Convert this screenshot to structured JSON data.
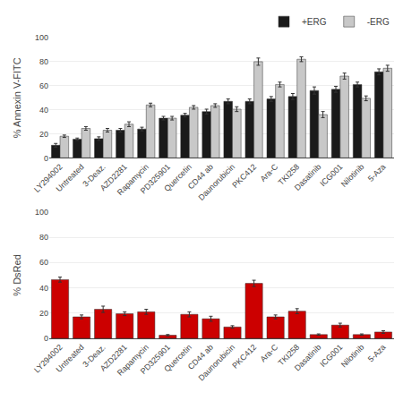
{
  "chart_data": [
    {
      "type": "bar",
      "categories": [
        "LY294002",
        "Untreated",
        "3-Deaz.",
        "AZD2281",
        "Rapamycin",
        "PD325901",
        "Quercetin",
        "CD44 ab",
        "Daunorubicin",
        "PKC412",
        "Ara-C",
        "TKI258",
        "Dasatinib",
        "ICG001",
        "Nilotinib",
        "5-Aza"
      ],
      "series": [
        {
          "name": "+ERG",
          "color": "#1a1a1a",
          "values": [
            10.5,
            15.5,
            16.0,
            23.0,
            24.0,
            33.0,
            35.5,
            38.5,
            47.0,
            47.0,
            49.0,
            51.0,
            56.0,
            57.0,
            61.0,
            71.5
          ],
          "errors": [
            1.5,
            1.0,
            1.5,
            1.5,
            1.5,
            1.5,
            1.5,
            2.0,
            2.0,
            2.0,
            2.0,
            2.5,
            3.0,
            2.5,
            2.0,
            2.5
          ]
        },
        {
          "name": "-ERG",
          "color": "#c8c8c8",
          "values": [
            18.0,
            24.5,
            23.0,
            28.0,
            44.0,
            33.0,
            42.0,
            43.5,
            40.5,
            80.0,
            61.0,
            82.0,
            36.0,
            68.0,
            49.5,
            74.5
          ],
          "errors": [
            1.0,
            1.5,
            1.5,
            2.0,
            1.5,
            1.5,
            1.5,
            1.5,
            2.0,
            3.0,
            2.0,
            2.0,
            2.5,
            2.5,
            2.0,
            2.5
          ]
        }
      ],
      "ylabel": "% Annexin V-FITC",
      "ylim": [
        0,
        100
      ],
      "yticks": [
        0,
        20,
        40,
        60,
        80,
        100
      ],
      "grid": true,
      "legend": "upper right"
    },
    {
      "type": "bar",
      "categories": [
        "LY294002",
        "Untreated",
        "3-Deaz.",
        "AZD2281",
        "Rapamycin",
        "PD325901",
        "Quercetin",
        "CD44 ab",
        "Daunorubicin",
        "PKC412",
        "Ara-C",
        "TKI258",
        "Dasatinib",
        "ICG001",
        "Nilotinib",
        "5-Aza"
      ],
      "values": [
        46.5,
        17.0,
        23.0,
        19.5,
        21.0,
        2.5,
        19.0,
        15.5,
        9.0,
        43.5,
        17.0,
        21.5,
        3.0,
        10.5,
        3.0,
        5.0
      ],
      "errors": [
        2.0,
        1.5,
        2.5,
        1.5,
        2.0,
        0.5,
        2.0,
        2.0,
        1.0,
        2.5,
        1.5,
        2.0,
        0.5,
        1.5,
        0.5,
        1.0
      ],
      "color": "#cc0000",
      "ylabel": "% DsRed",
      "ylim": [
        0,
        100
      ],
      "yticks": [
        0,
        20,
        40,
        60,
        80,
        100
      ],
      "grid": true
    }
  ]
}
